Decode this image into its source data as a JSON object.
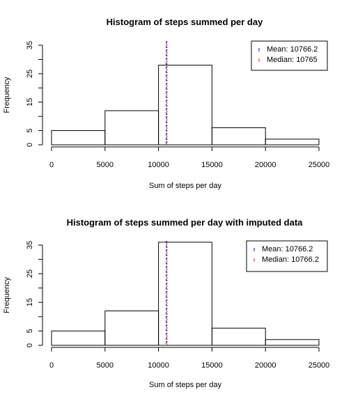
{
  "chart_data": [
    {
      "type": "bar",
      "title": "Histogram of steps summed per day",
      "xlabel": "Sum of steps per day",
      "ylabel": "Frequency",
      "bin_edges": [
        0,
        5000,
        10000,
        15000,
        20000,
        25000
      ],
      "values": [
        5,
        12,
        28,
        6,
        2
      ],
      "xlim": [
        0,
        25000
      ],
      "ylim": [
        0,
        35
      ],
      "x_ticks": [
        0,
        5000,
        10000,
        15000,
        20000,
        25000
      ],
      "y_ticks": [
        0,
        5,
        15,
        25,
        35
      ],
      "grid": false,
      "legend_position": "top-right",
      "vlines": [
        {
          "label": "Mean:  10766.2",
          "value": 10766.2,
          "color": "#0000cc"
        },
        {
          "label": "Median: 10765",
          "value": 10765,
          "color": "#cc3300"
        }
      ]
    },
    {
      "type": "bar",
      "title": "Histogram of steps summed per day with imputed data",
      "xlabel": "Sum of steps per day",
      "ylabel": "Frequency",
      "bin_edges": [
        0,
        5000,
        10000,
        15000,
        20000,
        25000
      ],
      "values": [
        5,
        12,
        36,
        6,
        2
      ],
      "xlim": [
        0,
        25000
      ],
      "ylim": [
        0,
        35
      ],
      "x_ticks": [
        0,
        5000,
        10000,
        15000,
        20000,
        25000
      ],
      "y_ticks": [
        0,
        5,
        15,
        25,
        35
      ],
      "grid": false,
      "legend_position": "top-right",
      "vlines": [
        {
          "label": "Mean:  10766.2",
          "value": 10766.2,
          "color": "#0000cc"
        },
        {
          "label": "Median: 10766.2",
          "value": 10766.2,
          "color": "#cc3300"
        }
      ]
    }
  ]
}
